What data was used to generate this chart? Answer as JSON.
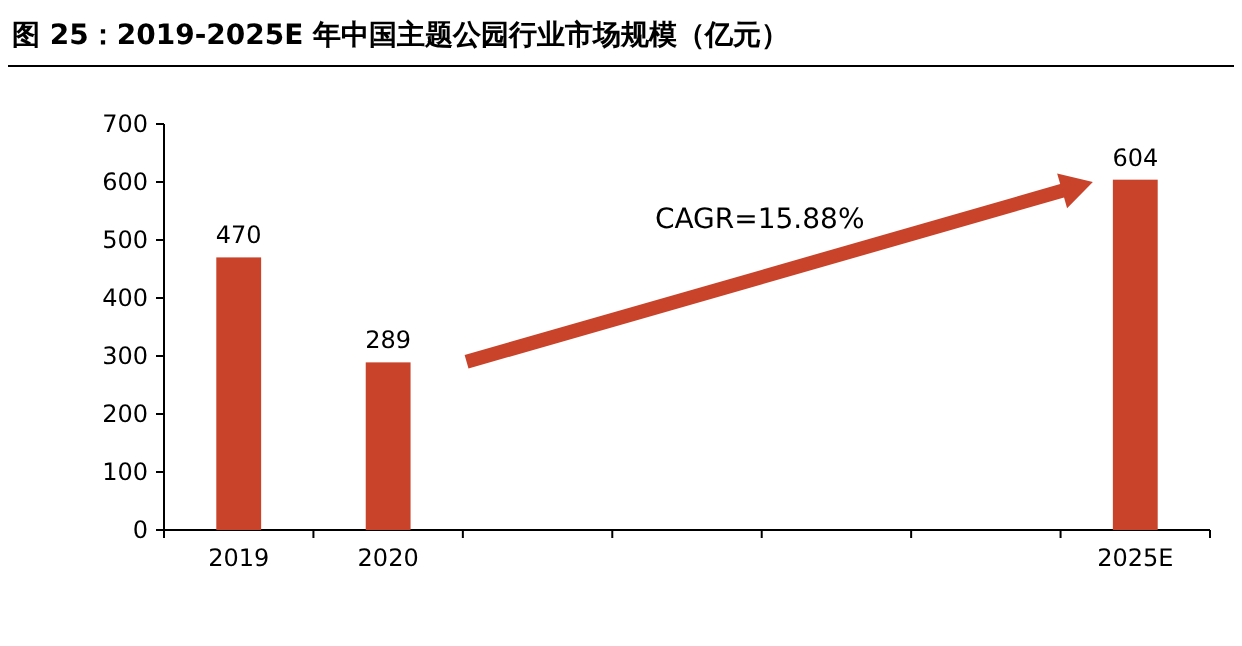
{
  "chart_data": {
    "type": "bar",
    "title": "图 25：2019-2025E 年中国主题公园行业市场规模（亿元）",
    "categories": [
      "2019",
      "2020",
      null,
      null,
      null,
      null,
      "2025E"
    ],
    "values": [
      470,
      289,
      null,
      null,
      null,
      null,
      604
    ],
    "color": "#c9432a",
    "ylim": [
      0,
      700
    ],
    "yticks": [
      0,
      100,
      200,
      300,
      400,
      500,
      600,
      700
    ],
    "data_labels": true,
    "grid": false,
    "annotations": [
      "CAGR=15.88%"
    ]
  }
}
